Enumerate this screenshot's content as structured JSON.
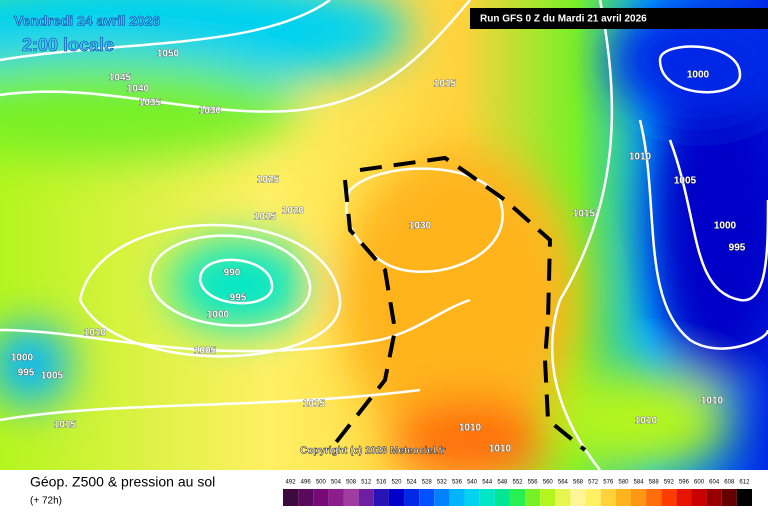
{
  "header": {
    "title": "Vendredi 24 avril 2026",
    "time": "2:00 locale",
    "run": "Run GFS 0 Z du Mardi 21 avril 2026"
  },
  "footer": {
    "title": "Géop. Z500 & pression au sol",
    "lead": "(+ 72h)",
    "copyright": "Copyright (c) 2026 Meteociel.fr"
  },
  "isobar_labels": [
    1050,
    1045,
    1040,
    1035,
    1030,
    1015,
    1000,
    1010,
    1025,
    1005,
    1015,
    1020,
    1030,
    1015,
    1000,
    995,
    990,
    995,
    1000,
    1010,
    1005,
    1000,
    995,
    1005,
    1015,
    1010,
    1015,
    1010,
    1010,
    1010
  ],
  "scale": [
    {
      "value": 492,
      "color": "#3c0a3c"
    },
    {
      "value": 496,
      "color": "#5a0a5a"
    },
    {
      "value": 500,
      "color": "#780a78"
    },
    {
      "value": 504,
      "color": "#8c1e8c"
    },
    {
      "value": 508,
      "color": "#a03ca0"
    },
    {
      "value": 512,
      "color": "#6e1ea0"
    },
    {
      "value": 516,
      "color": "#2814b4"
    },
    {
      "value": 520,
      "color": "#0000c8"
    },
    {
      "value": 524,
      "color": "#0028e6"
    },
    {
      "value": 528,
      "color": "#0050ff"
    },
    {
      "value": 532,
      "color": "#0082ff"
    },
    {
      "value": 536,
      "color": "#00b4ff"
    },
    {
      "value": 540,
      "color": "#00d2f0"
    },
    {
      "value": 544,
      "color": "#00e6c8"
    },
    {
      "value": 548,
      "color": "#00e696"
    },
    {
      "value": 552,
      "color": "#28f050"
    },
    {
      "value": 556,
      "color": "#78f028"
    },
    {
      "value": 560,
      "color": "#b4f51e"
    },
    {
      "value": 564,
      "color": "#e6f550"
    },
    {
      "value": 568,
      "color": "#fff596"
    },
    {
      "value": 572,
      "color": "#fff064"
    },
    {
      "value": 576,
      "color": "#ffd23c"
    },
    {
      "value": 580,
      "color": "#ffb41e"
    },
    {
      "value": 584,
      "color": "#ff9614"
    },
    {
      "value": 588,
      "color": "#ff6e0a"
    },
    {
      "value": 592,
      "color": "#ff3c00"
    },
    {
      "value": 596,
      "color": "#e61400"
    },
    {
      "value": 600,
      "color": "#c80000"
    },
    {
      "value": 604,
      "color": "#960000"
    },
    {
      "value": 608,
      "color": "#640000"
    },
    {
      "value": 612,
      "color": "#000000"
    }
  ]
}
